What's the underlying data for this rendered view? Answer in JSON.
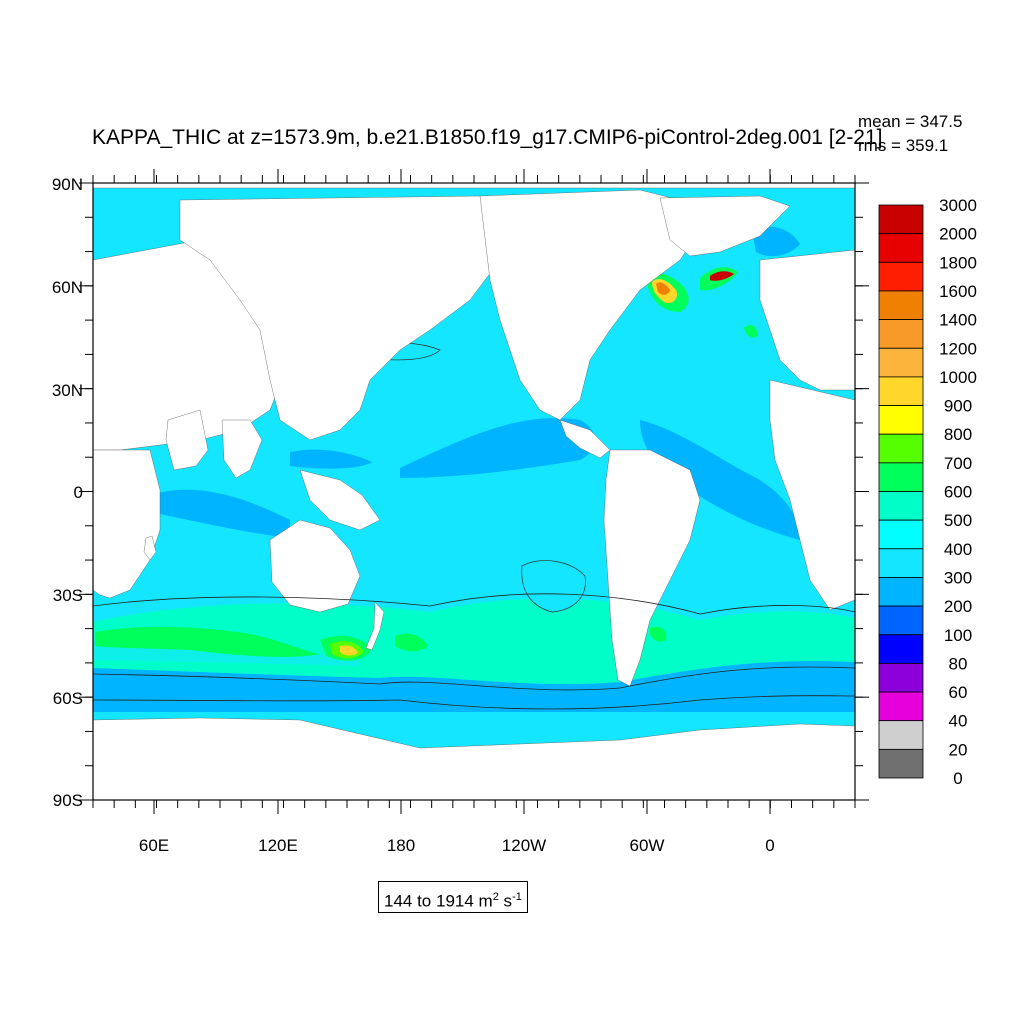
{
  "title": "KAPPA_THIC at z=1573.9m, b.e21.B1850.f19_g17.CMIP6-piControl-2deg.001 [2-21]",
  "stats": {
    "mean": "mean = 347.5",
    "rms": "rms = 359.1"
  },
  "range": {
    "text": "144 to 1914 m",
    "sup1": "2",
    "mid": " s",
    "sup2": "-1"
  },
  "axes": {
    "lat_labels": [
      "90N",
      "60N",
      "30N",
      "0",
      "30S",
      "60S",
      "90S"
    ],
    "lon_labels": [
      "60E",
      "120E",
      "180",
      "120W",
      "60W",
      "0"
    ]
  },
  "colorbar": {
    "levels": [
      "3000",
      "2000",
      "1800",
      "1600",
      "1400",
      "1200",
      "1000",
      "900",
      "800",
      "700",
      "600",
      "500",
      "400",
      "300",
      "200",
      "100",
      "80",
      "60",
      "40",
      "20",
      "0"
    ],
    "colors": [
      "#c80000",
      "#e60000",
      "#ff1e00",
      "#f08000",
      "#f89a28",
      "#fdb43c",
      "#ffd62a",
      "#ffff00",
      "#55ff00",
      "#00ff5a",
      "#00ffc8",
      "#00ffff",
      "#14e6ff",
      "#00b4ff",
      "#0064ff",
      "#0000ff",
      "#8c00dc",
      "#e600dc",
      "#cfcfcf",
      "#707070"
    ]
  },
  "map_colors": {
    "ocean_base": "#14e6ff",
    "ocean_low": "#00b4ff",
    "ocean_mid": "#00ffc8",
    "high_green": "#00ff5a",
    "high_lime": "#55ff00",
    "high_yellow": "#ffd62a",
    "high_orange": "#f08000",
    "high_red": "#c80000",
    "land": "#ffffff"
  }
}
